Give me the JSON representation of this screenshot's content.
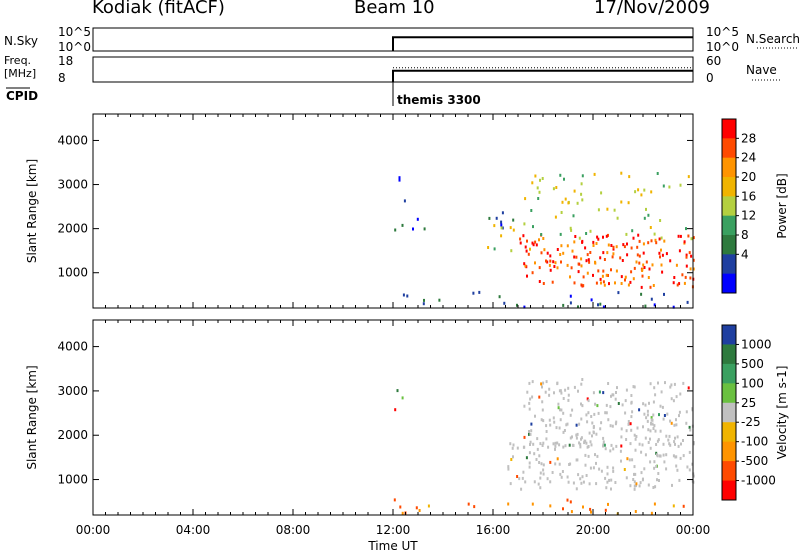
{
  "header": {
    "station": "Kodiak (fitACF)",
    "beam": "Beam 10",
    "date": "17/Nov/2009"
  },
  "chart_data": [
    {
      "type": "line",
      "name_label": "N.Sky",
      "right_label": "N.Search",
      "left_ticks": [
        "10^5",
        "10^0"
      ],
      "right_ticks": [
        "10^5",
        "10^0"
      ],
      "x": [
        "12:00",
        "24:00"
      ],
      "note": "",
      "level": 0.6
    },
    {
      "type": "line",
      "name_label": "Freq.",
      "unit_label": "[MHz]",
      "right_label": "Nave",
      "left_ticks": [
        "18",
        "8"
      ],
      "right_ticks": [
        "60",
        "0"
      ],
      "level": 0.45
    },
    {
      "type": "table",
      "name_label": "CPID",
      "entries": [
        {
          "time": "12:00",
          "text": "themis 3300"
        }
      ]
    },
    {
      "type": "heatmap",
      "quantity": "Power",
      "unit": "[dB]",
      "ylabel": "Slant Range [km]",
      "yticks": [
        1000,
        2000,
        3000,
        4000
      ],
      "ylim": [
        200,
        4600
      ],
      "xlim": [
        0,
        24
      ],
      "colorbar_labels": [
        "28",
        "24",
        "20",
        "16",
        "12",
        "8",
        "4"
      ],
      "colorbar_colors": [
        "#ff0000",
        "#ff4a00",
        "#ff9400",
        "#f0b400",
        "#b4d040",
        "#3aa060",
        "#2e7a3e",
        "#1f3fa0",
        "#0000ff"
      ],
      "echo_regions": [
        {
          "t": [
            12.0,
            12.6
          ],
          "r": [
            2300,
            3200
          ],
          "level": "low"
        },
        {
          "t": [
            12.0,
            17.0
          ],
          "r": [
            2000,
            2400
          ],
          "level": "low"
        },
        {
          "t": [
            12.0,
            24.0
          ],
          "r": [
            250,
            600
          ],
          "level": "low"
        },
        {
          "t": [
            15.5,
            17.5
          ],
          "r": [
            1400,
            2200
          ],
          "level": "medium"
        },
        {
          "t": [
            17.0,
            24.0
          ],
          "r": [
            700,
            1900
          ],
          "level": "high"
        },
        {
          "t": [
            17.2,
            24.0
          ],
          "r": [
            1800,
            3300
          ],
          "level": "medium"
        }
      ]
    },
    {
      "type": "heatmap",
      "quantity": "Velocity",
      "unit": "[m s-1]",
      "ylabel": "Slant Range [km]",
      "yticks": [
        1000,
        2000,
        3000,
        4000
      ],
      "ylim": [
        200,
        4600
      ],
      "xlim": [
        0,
        24
      ],
      "xticks": [
        "00:00",
        "04:00",
        "08:00",
        "12:00",
        "16:00",
        "20:00",
        "00:00"
      ],
      "xlabel": "Time UT",
      "colorbar_labels": [
        "1000",
        "500",
        "100",
        "25",
        "-25",
        "-100",
        "-500",
        "-1000"
      ],
      "colorbar_colors": [
        "#1f3fa0",
        "#2e7a3e",
        "#3aa060",
        "#6ac040",
        "#c0c0c0",
        "#f0b400",
        "#ff9400",
        "#ff4a00",
        "#ff0000"
      ],
      "echo_regions": [
        {
          "t": [
            12.0,
            12.6
          ],
          "r": [
            2300,
            3200
          ],
          "level": "mixed"
        },
        {
          "t": [
            12.0,
            24.0
          ],
          "r": [
            250,
            600
          ],
          "level": "negative"
        },
        {
          "t": [
            16.5,
            24.0
          ],
          "r": [
            800,
            1900
          ],
          "level": "near-zero"
        },
        {
          "t": [
            17.2,
            24.0
          ],
          "r": [
            1800,
            3300
          ],
          "level": "near-zero"
        }
      ]
    }
  ]
}
